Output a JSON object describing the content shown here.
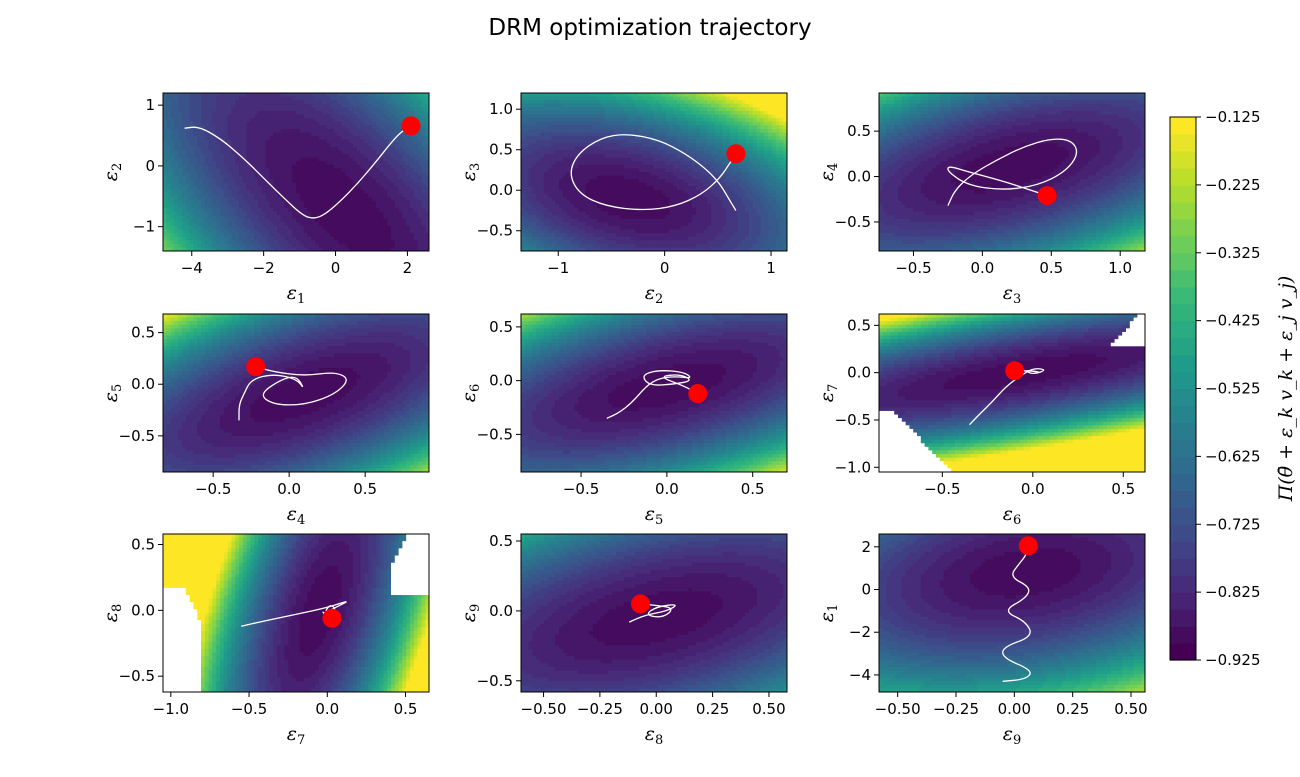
{
  "title": "DRM optimization trajectory",
  "colorbar": {
    "label": "Π(θ̄ + ε_k v_k + ε_j v_j)",
    "label_main": "Π(θ̄ + ε",
    "ticks": [
      "−0.125",
      "−0.225",
      "−0.325",
      "−0.425",
      "−0.525",
      "−0.625",
      "−0.725",
      "−0.825",
      "−0.925"
    ],
    "range": [
      -0.925,
      -0.125
    ],
    "colors": [
      "#440154",
      "#482878",
      "#3e4a89",
      "#31688e",
      "#26828e",
      "#1f9e89",
      "#35b779",
      "#6ece58",
      "#b5de2b",
      "#fde725"
    ]
  },
  "chart_data": [
    {
      "type": "contour",
      "xlabel": "ε",
      "xsub": "1",
      "ylabel": "ε",
      "ysub": "2",
      "xlim": [
        -4.8,
        2.6
      ],
      "ylim": [
        -1.4,
        1.2
      ],
      "xticks": [
        {
          "v": -4,
          "t": "−4"
        },
        {
          "v": -2,
          "t": "−2"
        },
        {
          "v": 0,
          "t": "0"
        },
        {
          "v": 2,
          "t": "2"
        }
      ],
      "yticks": [
        {
          "v": -1,
          "t": "−1"
        },
        {
          "v": 0,
          "t": "0"
        },
        {
          "v": 1,
          "t": "1"
        }
      ],
      "cx": 0.2,
      "cy": -0.7,
      "sx": 2.0,
      "sy": 1.2,
      "rho": 0.7,
      "trajectory": [
        [
          -4.2,
          0.62
        ],
        [
          -3.8,
          0.65
        ],
        [
          -3.2,
          0.45
        ],
        [
          -2.6,
          0.15
        ],
        [
          -2.0,
          -0.2
        ],
        [
          -1.4,
          -0.55
        ],
        [
          -0.9,
          -0.82
        ],
        [
          -0.6,
          -0.87
        ],
        [
          -0.3,
          -0.8
        ],
        [
          0.1,
          -0.6
        ],
        [
          0.6,
          -0.3
        ],
        [
          1.1,
          0.05
        ],
        [
          1.5,
          0.35
        ],
        [
          1.8,
          0.55
        ],
        [
          2.1,
          0.66
        ]
      ],
      "marker": [
        2.1,
        0.66
      ]
    },
    {
      "type": "contour",
      "xlabel": "ε",
      "xsub": "2",
      "ylabel": "ε",
      "ysub": "3",
      "xlim": [
        -1.35,
        1.15
      ],
      "ylim": [
        -0.75,
        1.2
      ],
      "xticks": [
        {
          "v": -1,
          "t": "−1"
        },
        {
          "v": 0,
          "t": "0"
        },
        {
          "v": 1,
          "t": "1"
        }
      ],
      "yticks": [
        {
          "v": -0.5,
          "t": "−0.5"
        },
        {
          "v": 0,
          "t": "0.0"
        },
        {
          "v": 0.5,
          "t": "0.5"
        },
        {
          "v": 1,
          "t": "1.0"
        }
      ],
      "cx": -0.35,
      "cy": -0.1,
      "sx": 0.75,
      "sy": 0.5,
      "rho": 0.4,
      "trajectory": [
        [
          0.67,
          -0.25
        ],
        [
          0.6,
          -0.1
        ],
        [
          0.52,
          0.08
        ],
        [
          0.4,
          0.25
        ],
        [
          0.2,
          0.45
        ],
        [
          -0.05,
          0.62
        ],
        [
          -0.35,
          0.7
        ],
        [
          -0.6,
          0.65
        ],
        [
          -0.82,
          0.45
        ],
        [
          -0.9,
          0.2
        ],
        [
          -0.8,
          -0.05
        ],
        [
          -0.55,
          -0.2
        ],
        [
          -0.2,
          -0.25
        ],
        [
          0.1,
          -0.2
        ],
        [
          0.35,
          -0.05
        ],
        [
          0.52,
          0.15
        ],
        [
          0.62,
          0.35
        ],
        [
          0.67,
          0.45
        ]
      ],
      "marker": [
        0.67,
        0.45
      ]
    },
    {
      "type": "contour",
      "xlabel": "ε",
      "xsub": "3",
      "ylabel": "ε",
      "ysub": "4",
      "xlim": [
        -0.75,
        1.18
      ],
      "ylim": [
        -0.82,
        0.92
      ],
      "xticks": [
        {
          "v": -0.5,
          "t": "−0.5"
        },
        {
          "v": 0,
          "t": "0.0"
        },
        {
          "v": 0.5,
          "t": "0.5"
        },
        {
          "v": 1,
          "t": "1.0"
        }
      ],
      "yticks": [
        {
          "v": -0.5,
          "t": "−0.5"
        },
        {
          "v": 0,
          "t": "0.0"
        },
        {
          "v": 0.5,
          "t": "0.5"
        }
      ],
      "cx": 0.2,
      "cy": 0.1,
      "sx": 0.7,
      "sy": 0.45,
      "rho": -0.55,
      "trajectory": [
        [
          -0.25,
          -0.32
        ],
        [
          -0.2,
          -0.15
        ],
        [
          -0.08,
          0.02
        ],
        [
          0.1,
          0.18
        ],
        [
          0.3,
          0.33
        ],
        [
          0.5,
          0.42
        ],
        [
          0.65,
          0.4
        ],
        [
          0.7,
          0.25
        ],
        [
          0.6,
          0.05
        ],
        [
          0.4,
          -0.1
        ],
        [
          0.15,
          -0.15
        ],
        [
          -0.1,
          -0.1
        ],
        [
          -0.25,
          0.05
        ],
        [
          -0.25,
          0.12
        ],
        [
          -0.1,
          0.05
        ],
        [
          0.15,
          -0.05
        ],
        [
          0.35,
          -0.15
        ],
        [
          0.47,
          -0.21
        ]
      ],
      "marker": [
        0.47,
        -0.21
      ]
    },
    {
      "type": "contour",
      "xlabel": "ε",
      "xsub": "4",
      "ylabel": "ε",
      "ysub": "5",
      "xlim": [
        -0.83,
        0.92
      ],
      "ylim": [
        -0.85,
        0.68
      ],
      "xticks": [
        {
          "v": -0.5,
          "t": "−0.5"
        },
        {
          "v": 0,
          "t": "0.0"
        },
        {
          "v": 0.5,
          "t": "0.5"
        }
      ],
      "yticks": [
        {
          "v": -0.5,
          "t": "−0.5"
        },
        {
          "v": 0,
          "t": "0.0"
        },
        {
          "v": 0.5,
          "t": "0.5"
        }
      ],
      "cx": 0.1,
      "cy": -0.1,
      "sx": 0.55,
      "sy": 0.4,
      "rho": -0.65,
      "trajectory": [
        [
          -0.33,
          -0.35
        ],
        [
          -0.33,
          -0.2
        ],
        [
          -0.3,
          -0.1
        ],
        [
          -0.25,
          0.05
        ],
        [
          -0.1,
          0.1
        ],
        [
          0.05,
          0.05
        ],
        [
          0.1,
          -0.05
        ],
        [
          0.05,
          0.08
        ],
        [
          -0.05,
          0.05
        ],
        [
          -0.2,
          -0.1
        ],
        [
          -0.1,
          -0.2
        ],
        [
          0.1,
          -0.2
        ],
        [
          0.3,
          -0.1
        ],
        [
          0.4,
          0.05
        ],
        [
          0.3,
          0.12
        ],
        [
          0.1,
          0.08
        ],
        [
          -0.1,
          0.12
        ],
        [
          -0.22,
          0.17
        ]
      ],
      "marker": [
        -0.22,
        0.17
      ]
    },
    {
      "type": "contour",
      "xlabel": "ε",
      "xsub": "5",
      "ylabel": "ε",
      "ysub": "6",
      "xlim": [
        -0.85,
        0.7
      ],
      "ylim": [
        -0.85,
        0.62
      ],
      "xticks": [
        {
          "v": -0.5,
          "t": "−0.5"
        },
        {
          "v": 0,
          "t": "0.0"
        },
        {
          "v": 0.5,
          "t": "0.5"
        }
      ],
      "yticks": [
        {
          "v": -0.5,
          "t": "−0.5"
        },
        {
          "v": 0,
          "t": "0.0"
        },
        {
          "v": 0.5,
          "t": "0.5"
        }
      ],
      "cx": 0.0,
      "cy": -0.05,
      "sx": 0.55,
      "sy": 0.35,
      "rho": -0.6,
      "trajectory": [
        [
          -0.35,
          -0.35
        ],
        [
          -0.28,
          -0.3
        ],
        [
          -0.2,
          -0.2
        ],
        [
          -0.12,
          -0.05
        ],
        [
          -0.05,
          0.02
        ],
        [
          0.05,
          0.04
        ],
        [
          0.15,
          0.02
        ],
        [
          0.1,
          0.08
        ],
        [
          -0.05,
          0.1
        ],
        [
          -0.15,
          0.05
        ],
        [
          -0.1,
          -0.05
        ],
        [
          0.05,
          -0.03
        ],
        [
          0.15,
          0.0
        ],
        [
          0.08,
          0.06
        ],
        [
          -0.05,
          0.04
        ],
        [
          0.1,
          -0.05
        ],
        [
          0.18,
          -0.12
        ]
      ],
      "marker": [
        0.18,
        -0.12
      ]
    },
    {
      "type": "contour",
      "xlabel": "ε",
      "xsub": "6",
      "ylabel": "ε",
      "ysub": "7",
      "xlim": [
        -0.85,
        0.62
      ],
      "ylim": [
        -1.05,
        0.62
      ],
      "xticks": [
        {
          "v": -0.5,
          "t": "−0.5"
        },
        {
          "v": 0,
          "t": "0.0"
        },
        {
          "v": 0.5,
          "t": "0.5"
        }
      ],
      "yticks": [
        {
          "v": -1,
          "t": "−1.0"
        },
        {
          "v": -0.5,
          "t": "−0.5"
        },
        {
          "v": 0,
          "t": "0.0"
        },
        {
          "v": 0.5,
          "t": "0.5"
        }
      ],
      "cx": -0.05,
      "cy": 0.0,
      "sx": 0.6,
      "sy": 0.25,
      "rho": -0.75,
      "cut": "both",
      "trajectory": [
        [
          -0.35,
          -0.55
        ],
        [
          -0.3,
          -0.45
        ],
        [
          -0.22,
          -0.3
        ],
        [
          -0.15,
          -0.15
        ],
        [
          -0.08,
          -0.05
        ],
        [
          0.0,
          0.05
        ],
        [
          0.08,
          0.03
        ],
        [
          0.0,
          -0.02
        ],
        [
          -0.05,
          0.03
        ],
        [
          0.05,
          0.0
        ],
        [
          0.0,
          0.02
        ],
        [
          -0.1,
          0.02
        ]
      ],
      "marker": [
        -0.1,
        0.02
      ]
    },
    {
      "type": "contour",
      "xlabel": "ε",
      "xsub": "7",
      "ylabel": "ε",
      "ysub": "8",
      "xlim": [
        -1.05,
        0.65
      ],
      "ylim": [
        -0.62,
        0.58
      ],
      "xticks": [
        {
          "v": -1,
          "t": "−1.0"
        },
        {
          "v": -0.5,
          "t": "−0.5"
        },
        {
          "v": 0,
          "t": "0.0"
        },
        {
          "v": 0.5,
          "t": "0.5"
        }
      ],
      "yticks": [
        {
          "v": -0.5,
          "t": "−0.5"
        },
        {
          "v": 0,
          "t": "0.0"
        },
        {
          "v": 0.5,
          "t": "0.5"
        }
      ],
      "cx": -0.05,
      "cy": 0.0,
      "sx": 0.22,
      "sy": 0.55,
      "rho": -0.6,
      "cut": "sides",
      "trajectory": [
        [
          -0.55,
          -0.12
        ],
        [
          -0.4,
          -0.08
        ],
        [
          -0.2,
          -0.03
        ],
        [
          0.0,
          0.02
        ],
        [
          0.15,
          0.08
        ],
        [
          0.05,
          0.02
        ],
        [
          -0.02,
          -0.02
        ],
        [
          0.02,
          0.05
        ],
        [
          0.06,
          0.0
        ],
        [
          0.0,
          -0.05
        ],
        [
          -0.04,
          0.0
        ],
        [
          0.03,
          -0.06
        ]
      ],
      "marker": [
        0.03,
        -0.06
      ]
    },
    {
      "type": "contour",
      "xlabel": "ε",
      "xsub": "8",
      "ylabel": "ε",
      "ysub": "9",
      "xlim": [
        -0.6,
        0.58
      ],
      "ylim": [
        -0.58,
        0.55
      ],
      "xticks": [
        {
          "v": -0.5,
          "t": "−0.50"
        },
        {
          "v": -0.25,
          "t": "−0.25"
        },
        {
          "v": 0,
          "t": "0.00"
        },
        {
          "v": 0.25,
          "t": "0.25"
        },
        {
          "v": 0.5,
          "t": "0.50"
        }
      ],
      "yticks": [
        {
          "v": -0.5,
          "t": "−0.5"
        },
        {
          "v": 0,
          "t": "0.0"
        },
        {
          "v": 0.5,
          "t": "0.5"
        }
      ],
      "cx": 0.0,
      "cy": -0.05,
      "sx": 0.5,
      "sy": 0.35,
      "rho": -0.5,
      "trajectory": [
        [
          -0.12,
          -0.08
        ],
        [
          -0.05,
          -0.03
        ],
        [
          0.05,
          0.0
        ],
        [
          0.1,
          0.05
        ],
        [
          0.0,
          0.03
        ],
        [
          -0.05,
          -0.03
        ],
        [
          0.03,
          -0.05
        ],
        [
          0.08,
          0.02
        ],
        [
          0.0,
          0.04
        ],
        [
          -0.07,
          0.05
        ]
      ],
      "marker": [
        -0.07,
        0.05
      ]
    },
    {
      "type": "contour",
      "xlabel": "ε",
      "xsub": "9",
      "ylabel": "ε",
      "ysub": "1",
      "xlim": [
        -0.58,
        0.56
      ],
      "ylim": [
        -4.8,
        2.6
      ],
      "xticks": [
        {
          "v": -0.5,
          "t": "−0.50"
        },
        {
          "v": -0.25,
          "t": "−0.25"
        },
        {
          "v": 0,
          "t": "0.00"
        },
        {
          "v": 0.25,
          "t": "0.25"
        },
        {
          "v": 0.5,
          "t": "0.50"
        }
      ],
      "yticks": [
        {
          "v": -4,
          "t": "−4"
        },
        {
          "v": -2,
          "t": "−2"
        },
        {
          "v": 0,
          "t": "0"
        },
        {
          "v": 2,
          "t": "2"
        }
      ],
      "cx": 0.05,
      "cy": 0.8,
      "sx": 0.45,
      "sy": 2.2,
      "rho": -0.3,
      "trajectory": [
        [
          -0.05,
          -4.3
        ],
        [
          0.05,
          -4.2
        ],
        [
          0.08,
          -3.8
        ],
        [
          -0.05,
          -3.2
        ],
        [
          -0.05,
          -2.7
        ],
        [
          0.08,
          -2.2
        ],
        [
          0.05,
          -1.5
        ],
        [
          -0.05,
          -1.0
        ],
        [
          0.05,
          -0.4
        ],
        [
          0.07,
          0.1
        ],
        [
          -0.02,
          0.6
        ],
        [
          0.02,
          1.2
        ],
        [
          0.05,
          1.6
        ],
        [
          0.06,
          2.05
        ]
      ],
      "marker": [
        0.06,
        2.05
      ]
    }
  ]
}
